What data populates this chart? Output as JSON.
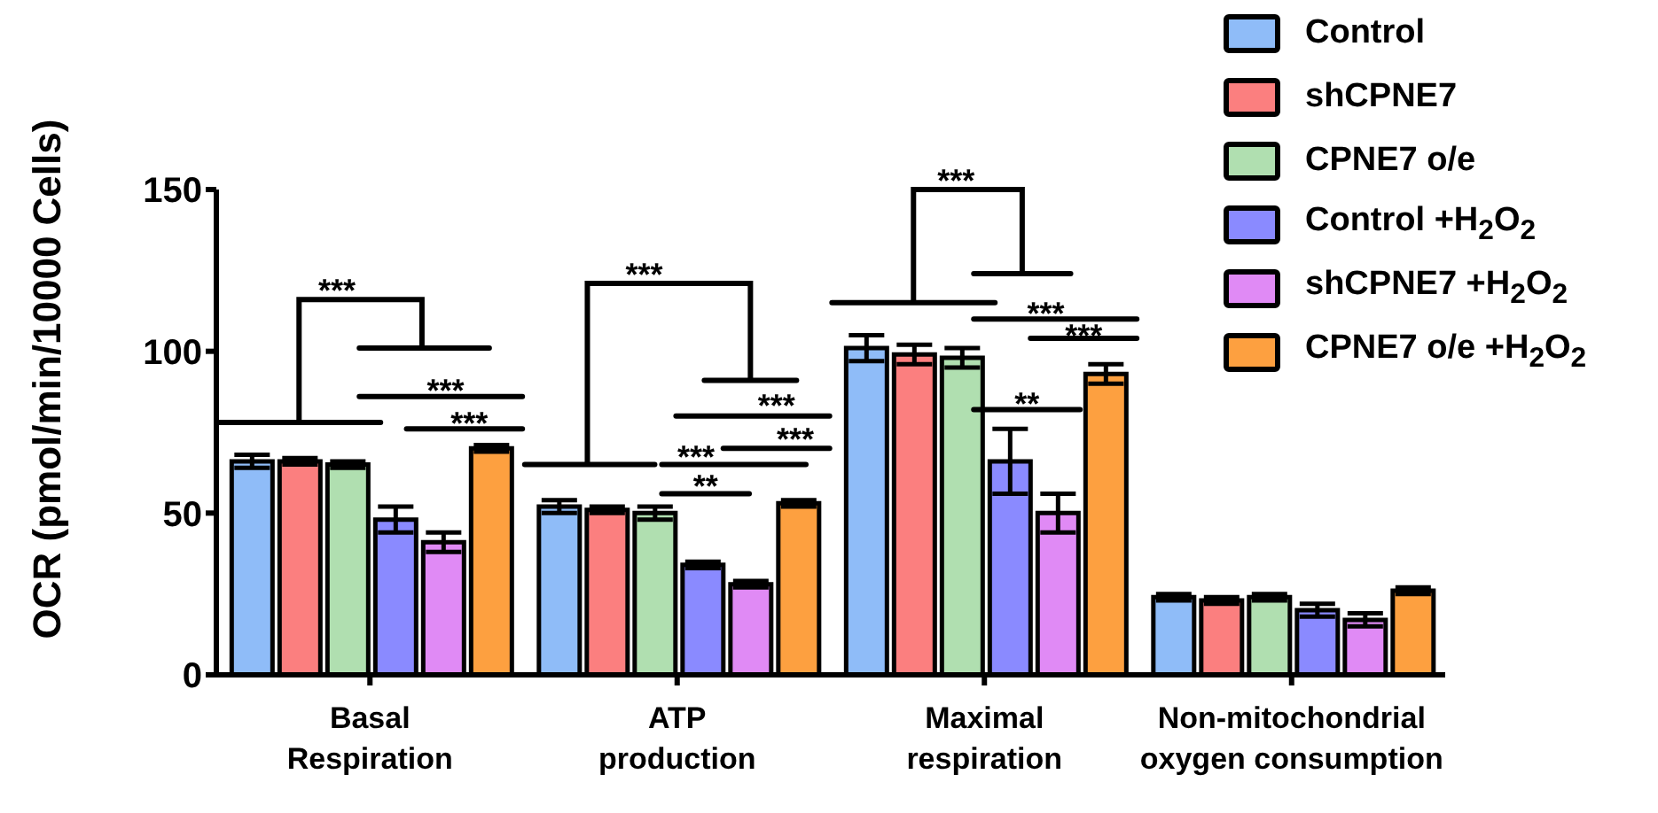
{
  "chart_data": {
    "type": "bar",
    "ylabel": "OCR (pmol/min/10000 Cells)",
    "categories": [
      "Basal Respiration",
      "ATP production",
      "Maximal respiration",
      "Non-mitochondrial oxygen consumption"
    ],
    "series": [
      {
        "name": "Control",
        "color": "#8fbcf8",
        "values": [
          66,
          52,
          101,
          24
        ],
        "errors": [
          2,
          2,
          4,
          1
        ]
      },
      {
        "name": "shCPNE7",
        "color": "#fb7f7f",
        "values": [
          66,
          51,
          99,
          23
        ],
        "errors": [
          1,
          1,
          3,
          1
        ]
      },
      {
        "name": "CPNE7 o/e",
        "color": "#b0dfb0",
        "values": [
          65,
          50,
          98,
          24
        ],
        "errors": [
          1,
          2,
          3,
          1
        ]
      },
      {
        "name": "Control +H$_{2}$O$_{2}$",
        "color": "#8a8aff",
        "values": [
          48,
          34,
          66,
          20
        ],
        "errors": [
          4,
          1,
          10,
          2
        ]
      },
      {
        "name": "shCPNE7 +H$_{2}$O$_{2}$",
        "color": "#e08af5",
        "values": [
          41,
          28,
          50,
          17
        ],
        "errors": [
          3,
          1,
          6,
          2
        ]
      },
      {
        "name": "CPNE7 o/e +H$_{2}$O$_{2}$",
        "color": "#fda040",
        "values": [
          70,
          53,
          93,
          26
        ],
        "errors": [
          1,
          1,
          3,
          1
        ]
      }
    ],
    "ylim": [
      0,
      150
    ],
    "yticks": [
      0,
      50,
      100,
      150
    ],
    "grid": false,
    "legend": "top right",
    "annotations": [
      "***",
      "***",
      "***",
      "***",
      "***",
      "***",
      "***",
      "**",
      "***",
      "***",
      "***",
      "**"
    ]
  }
}
